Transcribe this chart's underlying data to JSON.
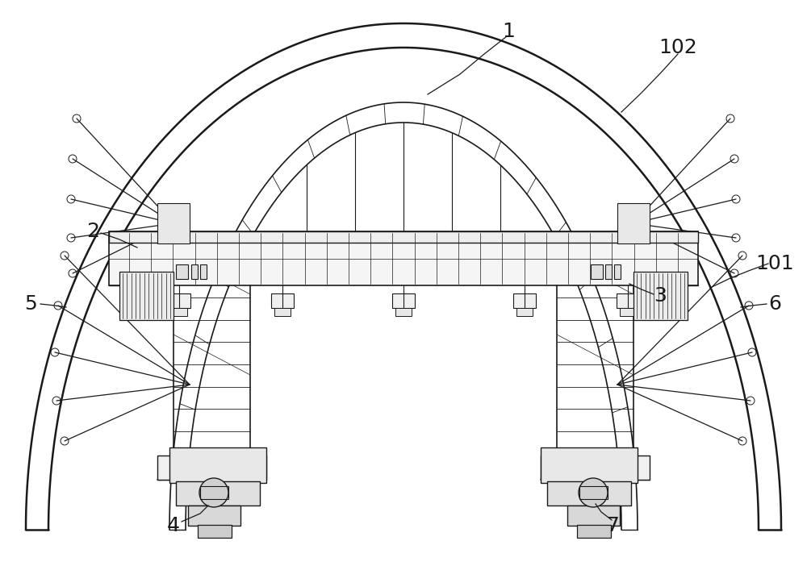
{
  "bg_color": "#ffffff",
  "lc": "#1a1a1a",
  "lw": 1.0,
  "tlw": 1.8,
  "fig_w": 10.0,
  "fig_h": 7.07,
  "label_fs": 18
}
